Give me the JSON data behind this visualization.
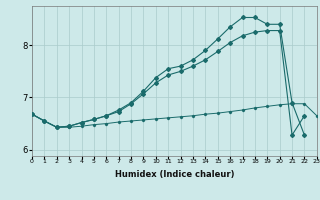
{
  "xlabel": "Humidex (Indice chaleur)",
  "bg_color": "#cde9e9",
  "grid_color": "#aacccc",
  "line_color": "#1a6b6b",
  "xlim": [
    0,
    23
  ],
  "ylim": [
    5.88,
    8.75
  ],
  "yticks": [
    6,
    7,
    8
  ],
  "xticks": [
    0,
    1,
    2,
    3,
    4,
    5,
    6,
    7,
    8,
    9,
    10,
    11,
    12,
    13,
    14,
    15,
    16,
    17,
    18,
    19,
    20,
    21,
    22,
    23
  ],
  "series_flat": [
    6.68,
    6.55,
    6.43,
    6.43,
    6.45,
    6.48,
    6.5,
    6.53,
    6.55,
    6.57,
    6.59,
    6.61,
    6.63,
    6.65,
    6.68,
    6.7,
    6.73,
    6.76,
    6.8,
    6.83,
    6.86,
    6.88,
    6.88,
    6.65
  ],
  "series_mid": [
    6.68,
    6.55,
    6.43,
    6.45,
    6.52,
    6.58,
    6.65,
    6.73,
    6.88,
    7.07,
    7.28,
    7.43,
    7.5,
    7.6,
    7.72,
    7.88,
    8.05,
    8.18,
    8.25,
    8.28,
    8.28,
    6.28,
    6.65,
    null
  ],
  "series_top": [
    6.68,
    6.55,
    6.43,
    6.45,
    6.52,
    6.58,
    6.65,
    6.76,
    6.9,
    7.12,
    7.38,
    7.55,
    7.6,
    7.72,
    7.9,
    8.12,
    8.35,
    8.53,
    8.53,
    8.4,
    8.4,
    6.9,
    6.28,
    null
  ]
}
